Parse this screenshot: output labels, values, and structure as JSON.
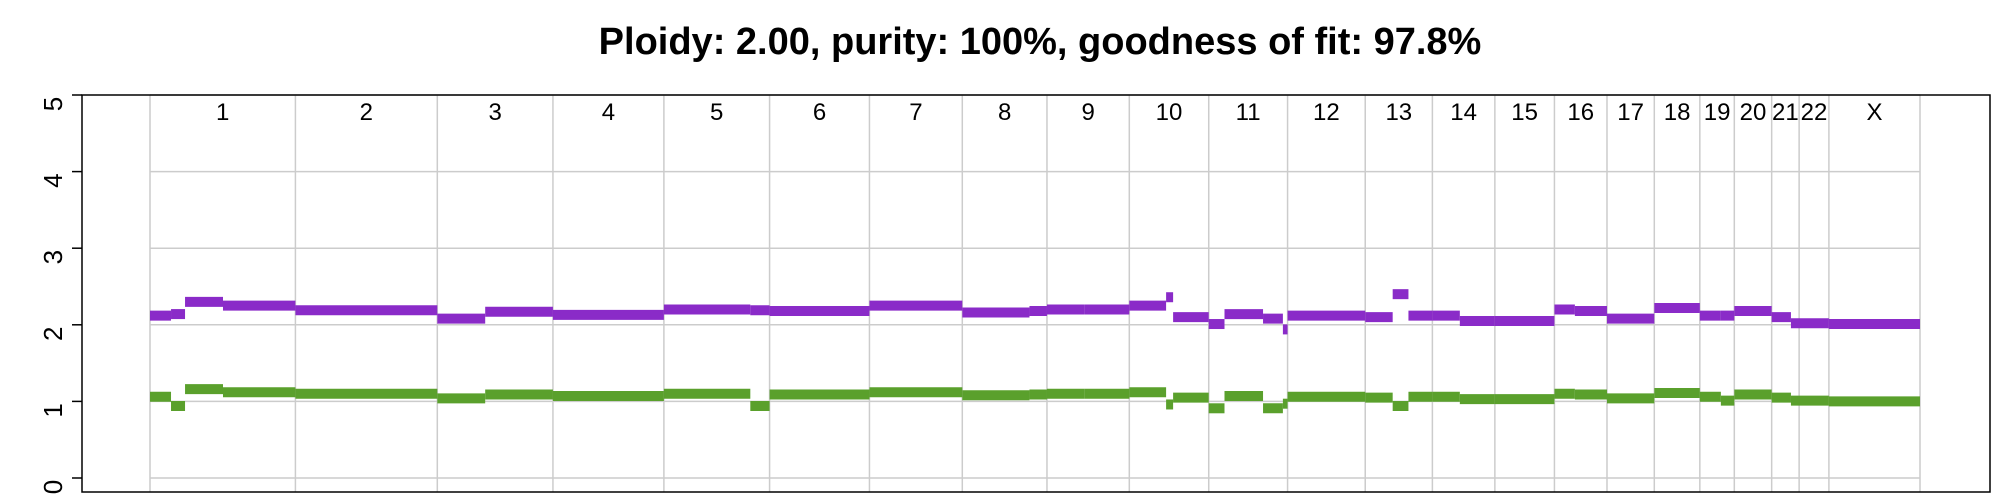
{
  "chart_data": {
    "type": "line",
    "title": "Ploidy: 2.00, purity: 100%, goodness of fit: 97.8%",
    "xlabel": "",
    "ylabel": "",
    "ylim": [
      0,
      5
    ],
    "yticks": [
      "0",
      "1",
      "2",
      "3",
      "4",
      "5"
    ],
    "grid": true,
    "colors": {
      "total": "#8a2bc8",
      "minor": "#5aa02c",
      "grid": "#cccccc",
      "axis": "#000000"
    },
    "chromosomes": [
      {
        "name": "1",
        "start": 0,
        "end": 249
      },
      {
        "name": "2",
        "start": 249,
        "end": 492
      },
      {
        "name": "3",
        "start": 492,
        "end": 690
      },
      {
        "name": "4",
        "start": 690,
        "end": 880
      },
      {
        "name": "5",
        "start": 880,
        "end": 1061
      },
      {
        "name": "6",
        "start": 1061,
        "end": 1232
      },
      {
        "name": "7",
        "start": 1232,
        "end": 1391
      },
      {
        "name": "8",
        "start": 1391,
        "end": 1536
      },
      {
        "name": "9",
        "start": 1536,
        "end": 1677
      },
      {
        "name": "10",
        "start": 1677,
        "end": 1813
      },
      {
        "name": "11",
        "start": 1813,
        "end": 1948
      },
      {
        "name": "12",
        "start": 1948,
        "end": 2081
      },
      {
        "name": "13",
        "start": 2081,
        "end": 2196
      },
      {
        "name": "14",
        "start": 2196,
        "end": 2303
      },
      {
        "name": "15",
        "start": 2303,
        "end": 2405
      },
      {
        "name": "16",
        "start": 2405,
        "end": 2495
      },
      {
        "name": "17",
        "start": 2495,
        "end": 2576
      },
      {
        "name": "18",
        "start": 2576,
        "end": 2654
      },
      {
        "name": "19",
        "start": 2654,
        "end": 2713
      },
      {
        "name": "20",
        "start": 2713,
        "end": 2777
      },
      {
        "name": "21",
        "start": 2777,
        "end": 2824
      },
      {
        "name": "22",
        "start": 2824,
        "end": 2875
      },
      {
        "name": "X",
        "start": 2875,
        "end": 3031
      }
    ],
    "series": [
      {
        "key": "total",
        "segments": [
          {
            "x0": 0,
            "x1": 36,
            "y": 2.12
          },
          {
            "x0": 36,
            "x1": 60,
            "y": 2.14
          },
          {
            "x0": 60,
            "x1": 125,
            "y": 2.3
          },
          {
            "x0": 125,
            "x1": 249,
            "y": 2.25
          },
          {
            "x0": 249,
            "x1": 492,
            "y": 2.19
          },
          {
            "x0": 492,
            "x1": 574,
            "y": 2.08
          },
          {
            "x0": 574,
            "x1": 690,
            "y": 2.17
          },
          {
            "x0": 690,
            "x1": 880,
            "y": 2.13
          },
          {
            "x0": 880,
            "x1": 1028,
            "y": 2.2
          },
          {
            "x0": 1028,
            "x1": 1061,
            "y": 2.19
          },
          {
            "x0": 1061,
            "x1": 1232,
            "y": 2.18
          },
          {
            "x0": 1232,
            "x1": 1391,
            "y": 2.25
          },
          {
            "x0": 1391,
            "x1": 1506,
            "y": 2.16
          },
          {
            "x0": 1506,
            "x1": 1536,
            "y": 2.18
          },
          {
            "x0": 1536,
            "x1": 1600,
            "y": 2.2
          },
          {
            "x0": 1600,
            "x1": 1677,
            "y": 2.2
          },
          {
            "x0": 1677,
            "x1": 1740,
            "y": 2.25
          },
          {
            "x0": 1740,
            "x1": 1752,
            "y": 2.36
          },
          {
            "x0": 1752,
            "x1": 1813,
            "y": 2.1
          },
          {
            "x0": 1813,
            "x1": 1840,
            "y": 2.01
          },
          {
            "x0": 1840,
            "x1": 1906,
            "y": 2.14
          },
          {
            "x0": 1906,
            "x1": 1940,
            "y": 2.08
          },
          {
            "x0": 1940,
            "x1": 1948,
            "y": 1.94
          },
          {
            "x0": 1948,
            "x1": 2081,
            "y": 2.12
          },
          {
            "x0": 2081,
            "x1": 2128,
            "y": 2.1
          },
          {
            "x0": 2128,
            "x1": 2155,
            "y": 2.4
          },
          {
            "x0": 2155,
            "x1": 2196,
            "y": 2.12
          },
          {
            "x0": 2196,
            "x1": 2243,
            "y": 2.12
          },
          {
            "x0": 2243,
            "x1": 2303,
            "y": 2.05
          },
          {
            "x0": 2303,
            "x1": 2405,
            "y": 2.05
          },
          {
            "x0": 2405,
            "x1": 2440,
            "y": 2.2
          },
          {
            "x0": 2440,
            "x1": 2495,
            "y": 2.18
          },
          {
            "x0": 2495,
            "x1": 2576,
            "y": 2.08
          },
          {
            "x0": 2576,
            "x1": 2654,
            "y": 2.22
          },
          {
            "x0": 2654,
            "x1": 2690,
            "y": 2.12
          },
          {
            "x0": 2690,
            "x1": 2713,
            "y": 2.12
          },
          {
            "x0": 2713,
            "x1": 2777,
            "y": 2.18
          },
          {
            "x0": 2777,
            "x1": 2810,
            "y": 2.1
          },
          {
            "x0": 2810,
            "x1": 2875,
            "y": 2.02
          },
          {
            "x0": 2875,
            "x1": 3031,
            "y": 2.01
          }
        ]
      },
      {
        "key": "minor",
        "segments": [
          {
            "x0": 0,
            "x1": 36,
            "y": 1.06
          },
          {
            "x0": 36,
            "x1": 60,
            "y": 0.94
          },
          {
            "x0": 60,
            "x1": 125,
            "y": 1.16
          },
          {
            "x0": 125,
            "x1": 249,
            "y": 1.12
          },
          {
            "x0": 249,
            "x1": 492,
            "y": 1.1
          },
          {
            "x0": 492,
            "x1": 574,
            "y": 1.04
          },
          {
            "x0": 574,
            "x1": 690,
            "y": 1.09
          },
          {
            "x0": 690,
            "x1": 880,
            "y": 1.07
          },
          {
            "x0": 880,
            "x1": 1028,
            "y": 1.1
          },
          {
            "x0": 1028,
            "x1": 1061,
            "y": 0.94
          },
          {
            "x0": 1061,
            "x1": 1232,
            "y": 1.09
          },
          {
            "x0": 1232,
            "x1": 1391,
            "y": 1.12
          },
          {
            "x0": 1391,
            "x1": 1506,
            "y": 1.08
          },
          {
            "x0": 1506,
            "x1": 1536,
            "y": 1.09
          },
          {
            "x0": 1536,
            "x1": 1600,
            "y": 1.1
          },
          {
            "x0": 1600,
            "x1": 1677,
            "y": 1.1
          },
          {
            "x0": 1677,
            "x1": 1740,
            "y": 1.12
          },
          {
            "x0": 1740,
            "x1": 1752,
            "y": 0.96
          },
          {
            "x0": 1752,
            "x1": 1813,
            "y": 1.05
          },
          {
            "x0": 1813,
            "x1": 1840,
            "y": 0.91
          },
          {
            "x0": 1840,
            "x1": 1906,
            "y": 1.07
          },
          {
            "x0": 1906,
            "x1": 1940,
            "y": 0.91
          },
          {
            "x0": 1940,
            "x1": 1948,
            "y": 0.97
          },
          {
            "x0": 1948,
            "x1": 2081,
            "y": 1.06
          },
          {
            "x0": 2081,
            "x1": 2128,
            "y": 1.05
          },
          {
            "x0": 2128,
            "x1": 2155,
            "y": 0.94
          },
          {
            "x0": 2155,
            "x1": 2196,
            "y": 1.06
          },
          {
            "x0": 2196,
            "x1": 2243,
            "y": 1.06
          },
          {
            "x0": 2243,
            "x1": 2303,
            "y": 1.03
          },
          {
            "x0": 2303,
            "x1": 2405,
            "y": 1.03
          },
          {
            "x0": 2405,
            "x1": 2440,
            "y": 1.1
          },
          {
            "x0": 2440,
            "x1": 2495,
            "y": 1.09
          },
          {
            "x0": 2495,
            "x1": 2576,
            "y": 1.04
          },
          {
            "x0": 2576,
            "x1": 2654,
            "y": 1.11
          },
          {
            "x0": 2654,
            "x1": 2690,
            "y": 1.06
          },
          {
            "x0": 2690,
            "x1": 2713,
            "y": 1.01
          },
          {
            "x0": 2713,
            "x1": 2777,
            "y": 1.09
          },
          {
            "x0": 2777,
            "x1": 2810,
            "y": 1.05
          },
          {
            "x0": 2810,
            "x1": 2875,
            "y": 1.01
          },
          {
            "x0": 2875,
            "x1": 3031,
            "y": 1.0
          }
        ]
      }
    ]
  }
}
